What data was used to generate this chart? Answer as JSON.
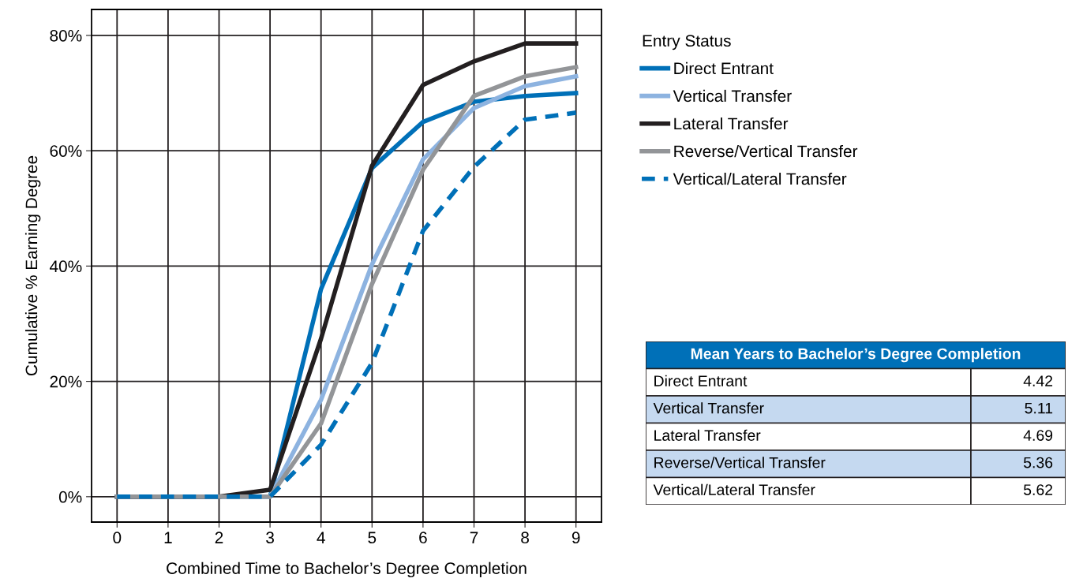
{
  "chart_data": [
    {
      "type": "line",
      "xlabel": "Combined Time to Bachelor’s Degree Completion",
      "ylabel": "Cumulative % Earning Degree",
      "legend_title": "Entry Status",
      "legend": "top right",
      "grid": true,
      "x": [
        0,
        1,
        2,
        3,
        4,
        5,
        6,
        7,
        8,
        9
      ],
      "xlim": [
        -0.5,
        9.5
      ],
      "xticks": [
        0,
        1,
        2,
        3,
        4,
        5,
        6,
        7,
        8,
        9
      ],
      "ylim": [
        -4.4,
        84.5
      ],
      "yticks": [
        {
          "value": 0,
          "label": "0%"
        },
        {
          "value": 20,
          "label": "20%"
        },
        {
          "value": 40,
          "label": "40%"
        },
        {
          "value": 60,
          "label": "60%"
        },
        {
          "value": 80,
          "label": "80%"
        }
      ],
      "series": [
        {
          "name": "Direct Entrant",
          "color": "#0070b8",
          "line_style": "solid",
          "values": [
            0,
            0,
            0,
            0,
            36,
            57,
            65,
            68.5,
            69.5,
            70
          ]
        },
        {
          "name": "Vertical Transfer",
          "color": "#8db3e0",
          "line_style": "solid",
          "values": [
            0,
            0,
            0,
            0,
            16.8,
            40.3,
            58.5,
            67.4,
            71.2,
            72.9
          ]
        },
        {
          "name": "Lateral Transfer",
          "color": "#231f20",
          "line_style": "solid",
          "values": [
            0,
            0,
            0,
            1.2,
            27.4,
            57.4,
            71.4,
            75.5,
            78.6,
            78.6
          ]
        },
        {
          "name": "Reverse/Vertical Transfer",
          "color": "#939598",
          "line_style": "solid",
          "values": [
            0,
            0,
            0,
            0,
            12.7,
            36.9,
            56.7,
            69.5,
            72.9,
            74.5
          ]
        },
        {
          "name": "Vertical/Lateral Transfer",
          "color": "#0070b8",
          "line_style": "dashed",
          "values": [
            0,
            0,
            0,
            0,
            9,
            23.2,
            46.1,
            57.2,
            65.4,
            66.6
          ]
        }
      ]
    },
    {
      "type": "other",
      "title": "Mean Years to Bachelor’s Degree Completion",
      "annotations": [
        "Direct Entrant",
        "4.42",
        "Vertical Transfer",
        "5.11",
        "Lateral Transfer",
        "4.69",
        "Reverse/Vertical Transfer",
        "5.36",
        "Vertical/Lateral Transfer",
        "5.62"
      ]
    }
  ]
}
